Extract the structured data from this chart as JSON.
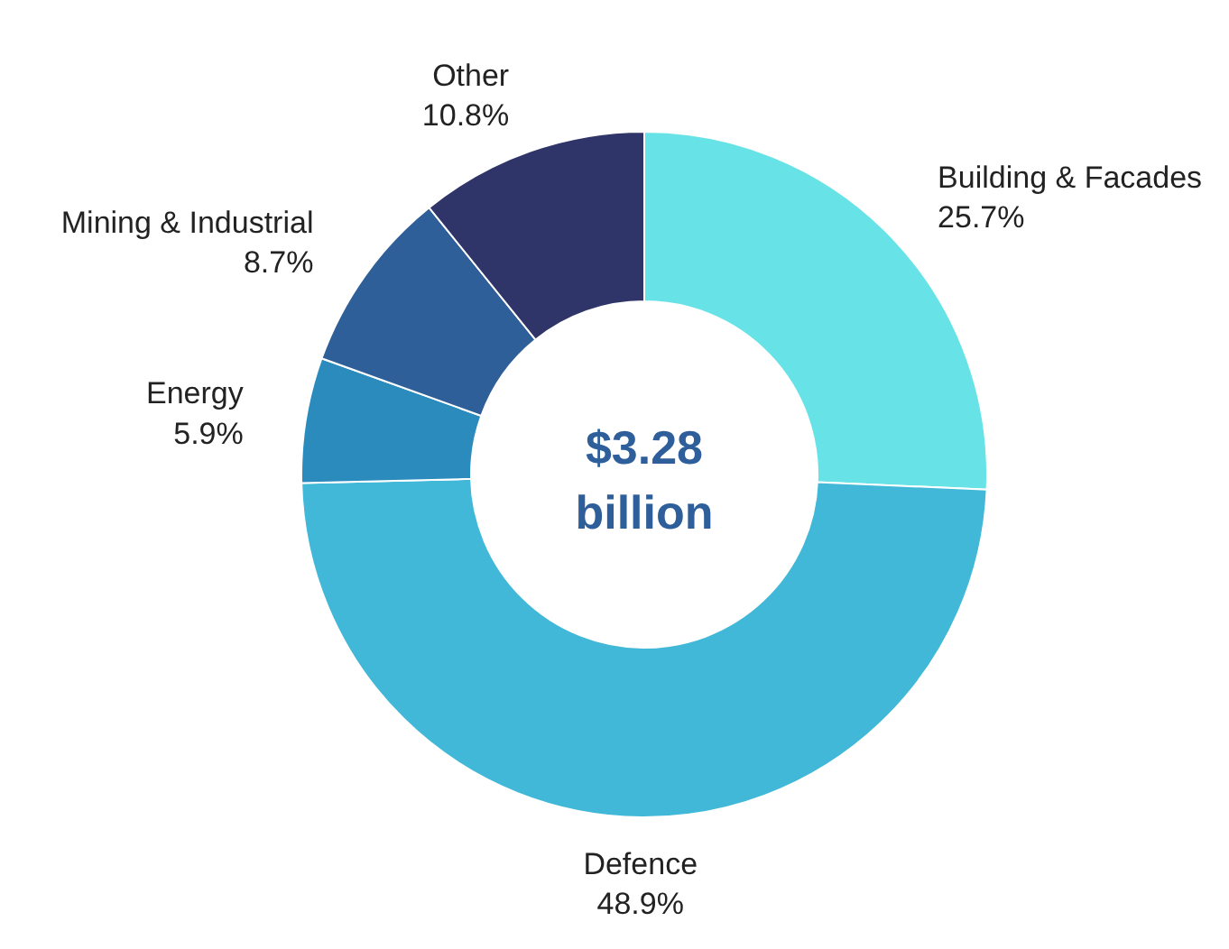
{
  "chart_data": {
    "type": "donut",
    "categories": [
      "Building & Facades",
      "Defence",
      "Energy",
      "Mining & Industrial",
      "Other"
    ],
    "values": [
      25.7,
      48.9,
      5.9,
      8.7,
      10.8
    ],
    "colors": [
      "#67e3e8",
      "#42b8d8",
      "#2b8bbd",
      "#2e5f98",
      "#2f3469"
    ],
    "value_labels": [
      "25.7%",
      "48.9%",
      "5.9%",
      "8.7%",
      "10.8%"
    ],
    "annotations": [
      "$3.28 billion"
    ]
  }
}
